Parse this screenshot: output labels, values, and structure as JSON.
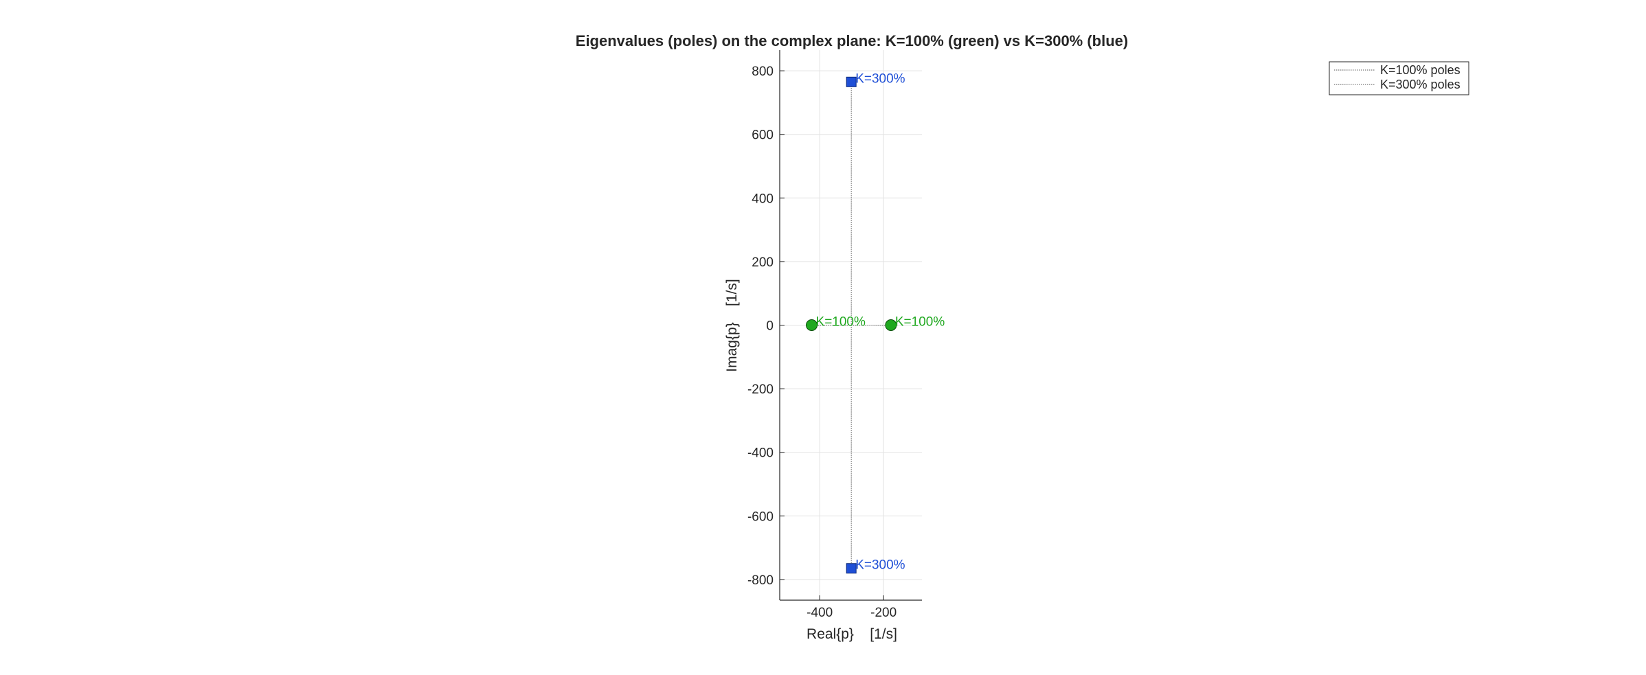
{
  "chart_data": {
    "type": "scatter",
    "title": "Eigenvalues (poles) on the complex plane: K=100% (green) vs K=300% (blue)",
    "xlabel": "Real{p}    [1/s]",
    "ylabel": "Imag{p}    [1/s]",
    "xlim": [
      -525,
      -80
    ],
    "ylim": [
      -865,
      865
    ],
    "xticks": [
      -400,
      -200
    ],
    "yticks": [
      -800,
      -600,
      -400,
      -200,
      0,
      200,
      400,
      600,
      800
    ],
    "grid": true,
    "legend_position": "top-right",
    "series": [
      {
        "name": "K=100% poles",
        "color": "#1fa81f",
        "marker": "circle",
        "points": [
          {
            "x": -425,
            "y": 0,
            "label": "K=100%"
          },
          {
            "x": -177,
            "y": 0,
            "label": "K=100%"
          }
        ]
      },
      {
        "name": "K=300% poles",
        "color": "#1f4fd6",
        "marker": "square",
        "points": [
          {
            "x": -301,
            "y": 765,
            "label": "K=300%"
          },
          {
            "x": -301,
            "y": -765,
            "label": "K=300%"
          }
        ]
      }
    ]
  }
}
